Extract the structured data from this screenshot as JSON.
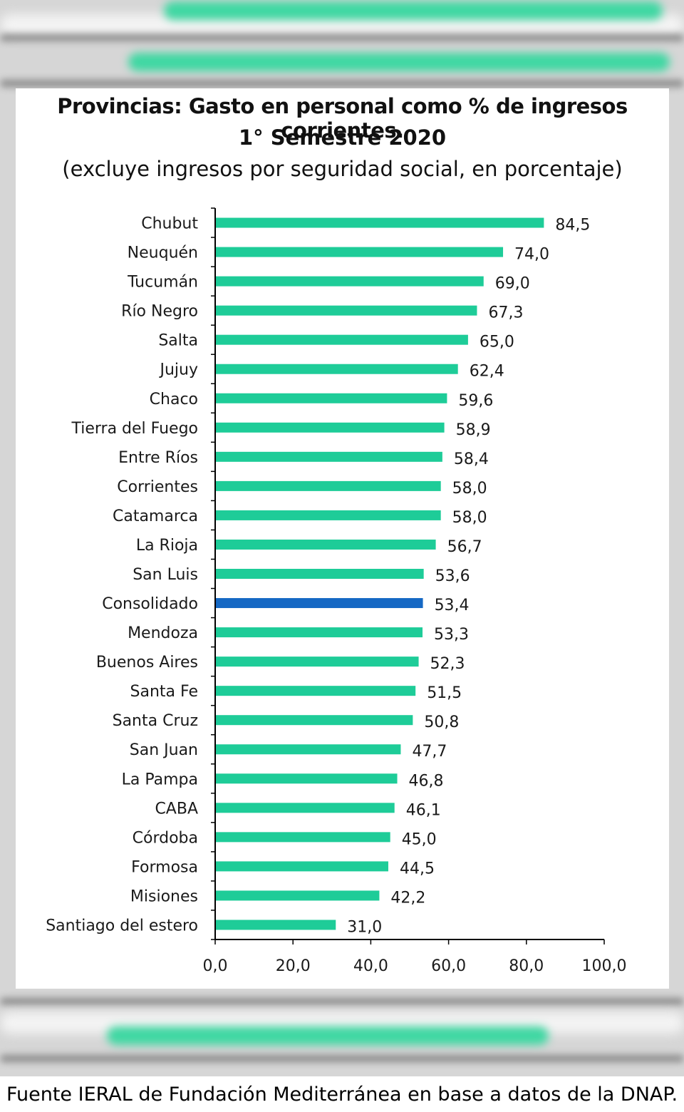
{
  "title_line1": "Provincias: Gasto en personal como % de ingresos corrientes.",
  "title_line2": "1° Semestre 2020",
  "subtitle": "(excluye ingresos por seguridad social, en porcentaje)",
  "source_note": "Fuente IERAL de Fundación Mediterránea en base a datos de la DNAP.",
  "colors": {
    "bar": "#1ecc98",
    "highlight": "#1568c4",
    "axis": "#000000"
  },
  "chart_data": {
    "type": "bar",
    "orientation": "horizontal",
    "title": "Provincias: Gasto en personal como % de ingresos corrientes. 1° Semestre 2020",
    "subtitle": "(excluye ingresos por seguridad social, en porcentaje)",
    "categories": [
      "Chubut",
      "Neuquén",
      "Tucumán",
      "Río Negro",
      "Salta",
      "Jujuy",
      "Chaco",
      "Tierra del Fuego",
      "Entre Ríos",
      "Corrientes",
      "Catamarca",
      "La Rioja",
      "San Luis",
      "Consolidado",
      "Mendoza",
      "Buenos Aires",
      "Santa Fe",
      "Santa Cruz",
      "San Juan",
      "La Pampa",
      "CABA",
      "Córdoba",
      "Formosa",
      "Misiones",
      "Santiago del estero"
    ],
    "values": [
      84.5,
      74.0,
      69.0,
      67.3,
      65.0,
      62.4,
      59.6,
      58.9,
      58.4,
      58.0,
      58.0,
      56.7,
      53.6,
      53.4,
      53.3,
      52.3,
      51.5,
      50.8,
      47.7,
      46.8,
      46.1,
      45.0,
      44.5,
      42.2,
      31.0
    ],
    "value_labels": [
      "84,5",
      "74,0",
      "69,0",
      "67,3",
      "65,0",
      "62,4",
      "59,6",
      "58,9",
      "58,4",
      "58,0",
      "58,0",
      "56,7",
      "53,6",
      "53,4",
      "53,3",
      "52,3",
      "51,5",
      "50,8",
      "47,7",
      "46,8",
      "46,1",
      "45,0",
      "44,5",
      "42,2",
      "31,0"
    ],
    "highlight_category": "Consolidado",
    "xlim": [
      0,
      100
    ],
    "xticks": [
      0,
      20,
      40,
      60,
      80,
      100
    ],
    "xtick_labels": [
      "0,0",
      "20,0",
      "40,0",
      "60,0",
      "80,0",
      "100,0"
    ],
    "xlabel": "",
    "ylabel": "",
    "grid": false,
    "legend": false
  }
}
